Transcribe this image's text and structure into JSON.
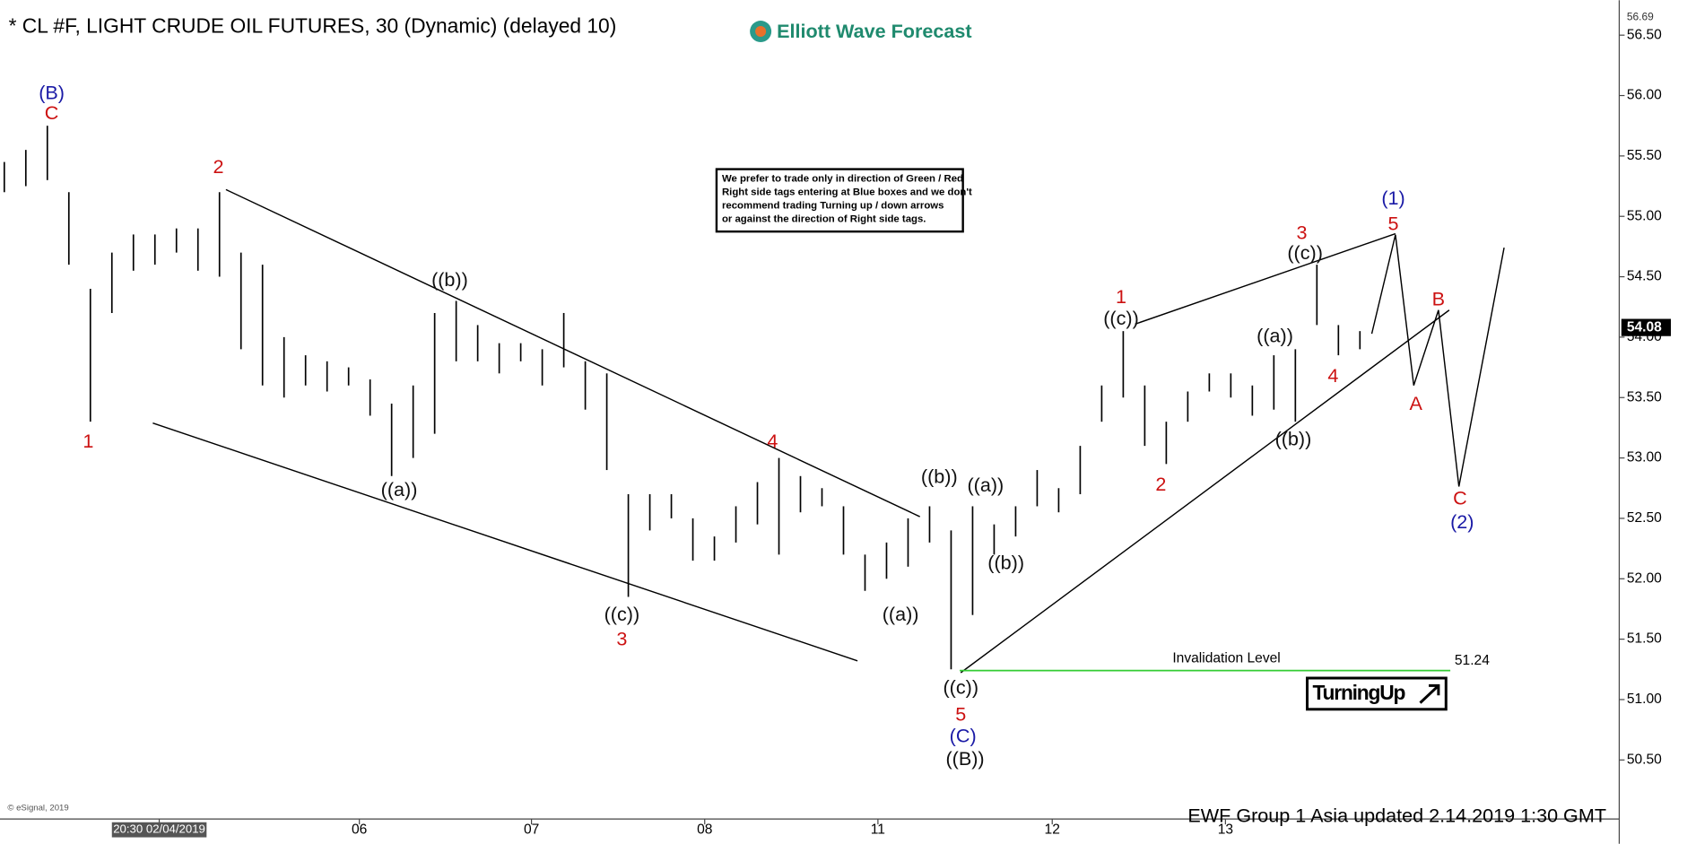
{
  "chart_data": {
    "type": "ohlc",
    "title": "* CL #F, LIGHT CRUDE OIL FUTURES, 30 (Dynamic) (delayed 10)",
    "logo": "Elliott Wave Forecast",
    "notice": [
      "We prefer to trade only in direction of Green / Red",
      "Right side tags entering at Blue boxes and we don't",
      "recommend trading Turning up / down arrows",
      "or against the direction of Right side tags."
    ],
    "footer": "EWF Group  1 Asia  updated 2.14.2019 1:30 GMT",
    "copyright": "© eSignal, 2019",
    "tag": "TurningUp",
    "color": "#000000",
    "x": [
      1,
      6,
      11,
      16,
      21,
      26,
      31,
      36,
      41,
      46,
      51,
      56,
      61,
      66,
      71,
      76,
      81,
      86,
      91,
      96,
      101,
      106,
      111,
      116,
      121,
      126,
      131,
      136,
      141,
      146,
      151,
      156,
      161,
      166,
      171,
      176,
      181,
      186,
      191,
      196,
      201,
      206,
      211,
      216,
      221,
      226,
      231,
      236,
      241,
      246,
      251,
      256,
      261,
      266,
      271,
      276,
      281,
      286,
      291,
      296,
      301,
      306,
      311,
      316
    ],
    "high": [
      55.45,
      55.55,
      55.75,
      55.2,
      54.4,
      54.7,
      54.85,
      54.85,
      54.9,
      54.9,
      55.2,
      54.7,
      54.6,
      54.0,
      53.85,
      53.8,
      53.75,
      53.65,
      53.45,
      53.6,
      54.2,
      54.3,
      54.1,
      53.95,
      53.95,
      53.9,
      54.2,
      53.8,
      53.7,
      52.7,
      52.7,
      52.7,
      52.5,
      52.35,
      52.6,
      52.8,
      53.0,
      52.85,
      52.75,
      52.6,
      52.2,
      52.3,
      52.5,
      52.6,
      52.4,
      52.6,
      52.45,
      52.6,
      52.9,
      52.75,
      53.1,
      53.6,
      54.05,
      53.6,
      53.3,
      53.55,
      53.7,
      53.7,
      53.6,
      53.85,
      53.9,
      54.6,
      54.1,
      54.05
    ],
    "low": [
      55.2,
      55.25,
      55.3,
      54.6,
      53.3,
      54.2,
      54.55,
      54.6,
      54.7,
      54.55,
      54.5,
      53.9,
      53.6,
      53.5,
      53.6,
      53.55,
      53.6,
      53.35,
      52.85,
      53.0,
      53.2,
      53.8,
      53.8,
      53.7,
      53.8,
      53.6,
      53.75,
      53.4,
      52.9,
      51.85,
      52.4,
      52.5,
      52.15,
      52.15,
      52.3,
      52.45,
      52.2,
      52.55,
      52.6,
      52.2,
      51.9,
      52.0,
      52.1,
      52.3,
      51.25,
      51.7,
      52.2,
      52.35,
      52.6,
      52.55,
      52.7,
      53.3,
      53.5,
      53.1,
      52.95,
      53.3,
      53.55,
      53.5,
      53.35,
      53.4,
      53.3,
      54.1,
      53.85,
      53.9
    ],
    "xlim": [
      0,
      376
    ],
    "xticks": [
      {
        "value": 37,
        "label": "20:30 02/04/2019"
      },
      {
        "value": 83.5,
        "label": "06"
      },
      {
        "value": 123.5,
        "label": "07"
      },
      {
        "value": 163.75,
        "label": "08"
      },
      {
        "value": 204,
        "label": "11"
      },
      {
        "value": 244.5,
        "label": "12"
      },
      {
        "value": 284.75,
        "label": "13"
      }
    ],
    "ylim": [
      50.02,
      56.7
    ],
    "yticks": [
      {
        "value": 50.5,
        "label": "50.50"
      },
      {
        "value": 51,
        "label": "51.00"
      },
      {
        "value": 51.5,
        "label": "51.50"
      },
      {
        "value": 52,
        "label": "52.00"
      },
      {
        "value": 52.5,
        "label": "52.50"
      },
      {
        "value": 53,
        "label": "53.00"
      },
      {
        "value": 53.5,
        "label": "53.50"
      },
      {
        "value": 54,
        "label": "54.00"
      },
      {
        "value": 54.5,
        "label": "54.50"
      },
      {
        "value": 55,
        "label": "55.00"
      },
      {
        "value": 55.5,
        "label": "55.50"
      },
      {
        "value": 56,
        "label": "56.00"
      },
      {
        "value": 56.5,
        "label": "56.50"
      }
    ],
    "top_price": 56.69,
    "last_price": 54.08,
    "invalidation": {
      "label": "Invalidation Level",
      "value": 51.24,
      "color": "#33cc33"
    },
    "annotations": [
      {
        "text": "(B)",
        "color": "#1a1aa6"
      },
      {
        "text": "C",
        "color": "#cc1111"
      },
      {
        "text": "1",
        "color": "#cc1111"
      },
      {
        "text": "2",
        "color": "#cc1111"
      },
      {
        "text": "((b))",
        "color": "#111111"
      },
      {
        "text": "((a))",
        "color": "#111111"
      },
      {
        "text": "((c))",
        "color": "#111111"
      },
      {
        "text": "3",
        "color": "#cc1111"
      },
      {
        "text": "4",
        "color": "#cc1111"
      },
      {
        "text": "((b))",
        "color": "#111111"
      },
      {
        "text": "((a))",
        "color": "#111111"
      },
      {
        "text": "((a))",
        "color": "#111111"
      },
      {
        "text": "((b))",
        "color": "#111111"
      },
      {
        "text": "((c))",
        "color": "#111111"
      },
      {
        "text": "5",
        "color": "#cc1111"
      },
      {
        "text": "(C)",
        "color": "#1a1aa6"
      },
      {
        "text": "((B))",
        "color": "#111111"
      },
      {
        "text": "1",
        "color": "#cc1111"
      },
      {
        "text": "((c))",
        "color": "#111111"
      },
      {
        "text": "2",
        "color": "#cc1111"
      },
      {
        "text": "((a))",
        "color": "#111111"
      },
      {
        "text": "((b))",
        "color": "#111111"
      },
      {
        "text": "3",
        "color": "#cc1111"
      },
      {
        "text": "((c))",
        "color": "#111111"
      },
      {
        "text": "4",
        "color": "#cc1111"
      },
      {
        "text": "(1)",
        "color": "#1a1aa6"
      },
      {
        "text": "5",
        "color": "#cc1111"
      },
      {
        "text": "B",
        "color": "#cc1111"
      },
      {
        "text": "A",
        "color": "#cc1111"
      },
      {
        "text": "C",
        "color": "#cc1111"
      },
      {
        "text": "(2)",
        "color": "#1a1aa6"
      }
    ]
  }
}
